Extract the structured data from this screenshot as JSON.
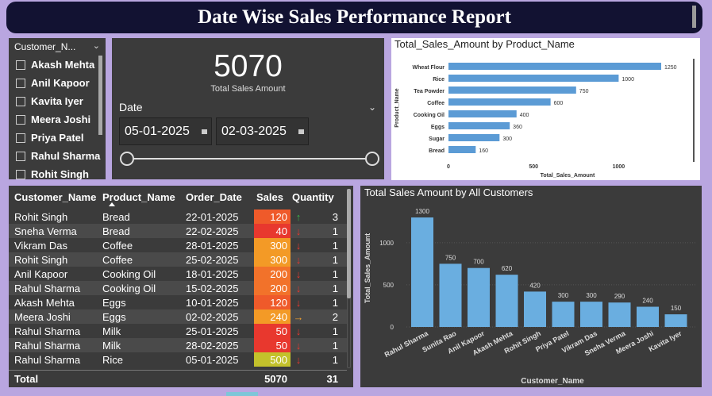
{
  "title": "Date Wise Sales Performance Report",
  "slicer": {
    "header": "Customer_N...",
    "items": [
      "Akash Mehta",
      "Anil Kapoor",
      "Kavita Iyer",
      "Meera Joshi",
      "Priya Patel",
      "Rahul Sharma",
      "Rohit Singh"
    ]
  },
  "kpi": {
    "value": "5070",
    "label": "Total Sales Amount"
  },
  "date_filter": {
    "label": "Date",
    "start": "05-01-2025",
    "end": "02-03-2025"
  },
  "product_chart": {
    "title": "Total_Sales_Amount by Product_Name",
    "xlabel": "Total_Sales_Amount",
    "ylabel": "Product_Name",
    "ticks": [
      "0",
      "500",
      "1000"
    ]
  },
  "table": {
    "headers": [
      "Customer_Name",
      "Product_Name",
      "Order_Date",
      "Sales",
      "Quantity"
    ],
    "rows": [
      {
        "customer": "Rohit Singh",
        "product": "Bread",
        "date": "22-01-2025",
        "sales": "120",
        "arrow": "↑",
        "qty": "3"
      },
      {
        "customer": "Sneha Verma",
        "product": "Bread",
        "date": "22-02-2025",
        "sales": "40",
        "arrow": "↓",
        "qty": "1"
      },
      {
        "customer": "Vikram Das",
        "product": "Coffee",
        "date": "28-01-2025",
        "sales": "300",
        "arrow": "↓",
        "qty": "1"
      },
      {
        "customer": "Rohit Singh",
        "product": "Coffee",
        "date": "25-02-2025",
        "sales": "300",
        "arrow": "↓",
        "qty": "1"
      },
      {
        "customer": "Anil Kapoor",
        "product": "Cooking Oil",
        "date": "18-01-2025",
        "sales": "200",
        "arrow": "↓",
        "qty": "1"
      },
      {
        "customer": "Rahul Sharma",
        "product": "Cooking Oil",
        "date": "15-02-2025",
        "sales": "200",
        "arrow": "↓",
        "qty": "1"
      },
      {
        "customer": "Akash Mehta",
        "product": "Eggs",
        "date": "10-01-2025",
        "sales": "120",
        "arrow": "↓",
        "qty": "1"
      },
      {
        "customer": "Meera Joshi",
        "product": "Eggs",
        "date": "02-02-2025",
        "sales": "240",
        "arrow": "→",
        "qty": "2"
      },
      {
        "customer": "Rahul Sharma",
        "product": "Milk",
        "date": "25-01-2025",
        "sales": "50",
        "arrow": "↓",
        "qty": "1"
      },
      {
        "customer": "Rahul Sharma",
        "product": "Milk",
        "date": "28-02-2025",
        "sales": "50",
        "arrow": "↓",
        "qty": "1"
      },
      {
        "customer": "Rahul Sharma",
        "product": "Rice",
        "date": "05-01-2025",
        "sales": "500",
        "arrow": "↓",
        "qty": "1"
      }
    ],
    "total_label": "Total",
    "total_sales": "5070",
    "total_qty": "31",
    "sales_colors": {
      "120": "#ef5a2a",
      "40": "#e8382e",
      "300": "#f39a26",
      "200": "#f2722a",
      "240": "#f39a26",
      "50": "#e8382e",
      "500": "#c3c12b"
    },
    "arrow_colors": {
      "up": "#39b54a",
      "down": "#e8382e",
      "side": "#f0a030"
    }
  },
  "customer_chart_title": "Total Sales Amount by All Customers",
  "chart_data": [
    {
      "type": "bar",
      "title": "Total_Sales_Amount by Product_Name",
      "orientation": "horizontal",
      "categories": [
        "Wheat Flour",
        "Rice",
        "Tea Powder",
        "Coffee",
        "Cooking Oil",
        "Eggs",
        "Sugar",
        "Bread"
      ],
      "values": [
        1250,
        1000,
        750,
        600,
        400,
        360,
        300,
        160
      ],
      "xlabel": "Total_Sales_Amount",
      "ylabel": "Product_Name",
      "xlim": [
        0,
        1250
      ],
      "color": "#5b9bd5"
    },
    {
      "type": "bar",
      "title": "Total Sales Amount by All Customers",
      "categories": [
        "Rahul Sharma",
        "Sunita Rao",
        "Anil Kapoor",
        "Akash Mehta",
        "Rohit Singh",
        "Priya Patel",
        "Vikram Das",
        "Sneha Verma",
        "Meera Joshi",
        "Kavita Iyer"
      ],
      "values": [
        1300,
        750,
        700,
        620,
        420,
        300,
        300,
        290,
        240,
        150
      ],
      "xlabel": "Customer_Name",
      "ylabel": "Total_Sales_Amount",
      "yticks": [
        0,
        500,
        1000
      ],
      "color": "#6aaee0"
    }
  ]
}
